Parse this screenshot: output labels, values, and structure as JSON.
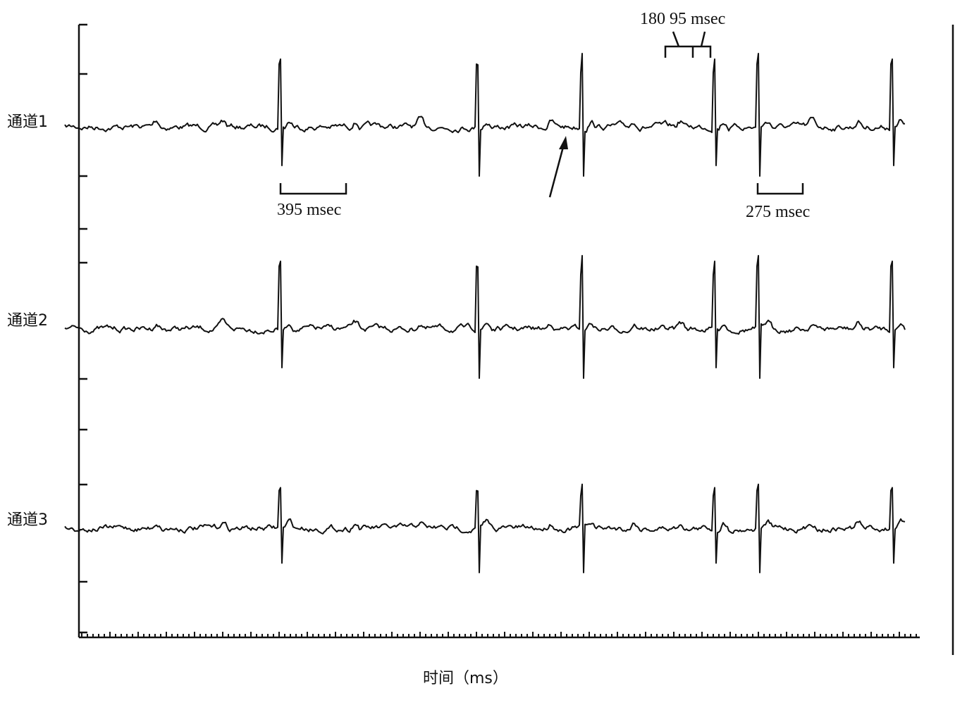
{
  "channels": [
    {
      "label": "通道1"
    },
    {
      "label": "通道2"
    },
    {
      "label": "通道3"
    }
  ],
  "annotations": {
    "interval_a": "395 msec",
    "interval_b": "275 msec",
    "interval_c": "180 95 msec"
  },
  "x_axis": {
    "label": "时间（ms）"
  }
}
